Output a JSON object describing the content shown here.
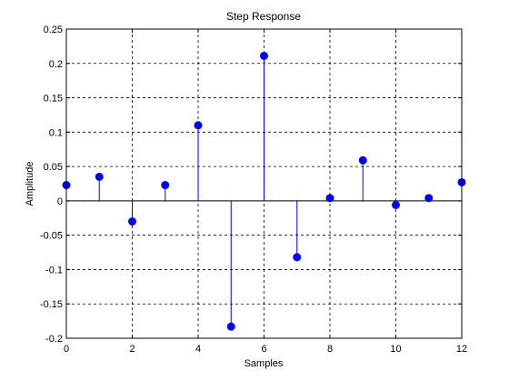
{
  "chart_data": {
    "type": "stem",
    "title": "Step Response",
    "xlabel": "Samples",
    "ylabel": "Amplitude",
    "xlim": [
      0,
      12
    ],
    "ylim": [
      -0.2,
      0.25
    ],
    "xticks": [
      0,
      2,
      4,
      6,
      8,
      10,
      12
    ],
    "yticks": [
      -0.2,
      -0.15,
      -0.1,
      -0.05,
      0,
      0.05,
      0.1,
      0.15,
      0.2,
      0.25
    ],
    "grid": true,
    "series": [
      {
        "color": "#0000ff",
        "x": [
          0,
          1,
          2,
          3,
          4,
          5,
          6,
          7,
          8,
          9,
          10,
          11,
          12
        ],
        "values": [
          0.023,
          0.035,
          -0.03,
          0.023,
          0.11,
          -0.183,
          0.211,
          -0.082,
          0.004,
          0.059,
          -0.006,
          0.004,
          0.027
        ]
      }
    ]
  }
}
